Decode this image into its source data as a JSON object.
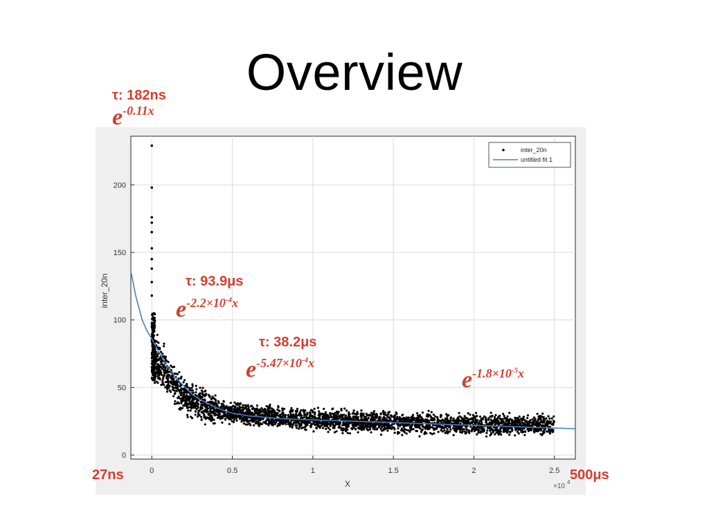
{
  "slide": {
    "title": "Overview"
  },
  "annotations": {
    "tau1": {
      "label": "τ: 182ns",
      "base": "e",
      "exponent": "-0.11x"
    },
    "tau2": {
      "label": "τ: 93.9μs",
      "base": "e",
      "exp_pre": "-2.2×10",
      "exp_sup": "-4",
      "exp_post": "x"
    },
    "tau3": {
      "label": "τ: 38.2μs",
      "base": "e",
      "exp_pre": "-5.47×10",
      "exp_sup": "-4",
      "exp_post": "x"
    },
    "tau4": {
      "base": "e",
      "exp_pre": "-1.8×10",
      "exp_sup": "-5",
      "exp_post": "x"
    },
    "range_start": "27ns",
    "range_end": "500μs"
  },
  "colors": {
    "annotation": "#d63d2e",
    "fit_line": "#4a7cc7",
    "points": "#000000",
    "grid": "#dcdcdc"
  },
  "chart_data": {
    "type": "scatter",
    "xlabel": "X",
    "ylabel": "inter_20n",
    "x_multiplier_label": "×10",
    "x_multiplier_exp": "4",
    "xlim": [
      -0.13,
      2.63
    ],
    "ylim": [
      -3,
      236
    ],
    "x_ticks": [
      "0",
      "0.5",
      "1",
      "1.5",
      "2",
      "2.5"
    ],
    "x_tick_values": [
      0,
      0.5,
      1,
      1.5,
      2,
      2.5
    ],
    "y_ticks": [
      "0",
      "50",
      "100",
      "150",
      "200"
    ],
    "y_tick_values": [
      0,
      50,
      100,
      150,
      200
    ],
    "grid": true,
    "legend_position": "top-right",
    "legend": [
      "inter_20n",
      "untitled fit 1"
    ],
    "series": [
      {
        "name": "inter_20n",
        "type": "scatter",
        "outliers": [
          [
            0,
            229
          ],
          [
            0,
            198
          ],
          [
            0,
            176
          ],
          [
            0,
            172
          ],
          [
            0,
            165
          ],
          [
            0,
            153
          ],
          [
            0,
            145
          ],
          [
            0,
            138
          ],
          [
            0,
            128
          ],
          [
            0,
            118
          ]
        ],
        "trend": [
          [
            0,
            78
          ],
          [
            0.05,
            66
          ],
          [
            0.1,
            58
          ],
          [
            0.15,
            50
          ],
          [
            0.2,
            44
          ],
          [
            0.3,
            37
          ],
          [
            0.4,
            33
          ],
          [
            0.5,
            31
          ],
          [
            0.75,
            28
          ],
          [
            1.0,
            26
          ],
          [
            1.5,
            24
          ],
          [
            2.0,
            23
          ],
          [
            2.5,
            22
          ]
        ]
      },
      {
        "name": "untitled fit 1",
        "type": "line",
        "points": [
          [
            -0.13,
            136
          ],
          [
            -0.1,
            118
          ],
          [
            -0.06,
            100
          ],
          [
            -0.03,
            92
          ],
          [
            0,
            86
          ],
          [
            0.05,
            75
          ],
          [
            0.1,
            65
          ],
          [
            0.15,
            57
          ],
          [
            0.2,
            51
          ],
          [
            0.25,
            45
          ],
          [
            0.3,
            41
          ],
          [
            0.4,
            35
          ],
          [
            0.5,
            31
          ],
          [
            0.6,
            29
          ],
          [
            0.8,
            27
          ],
          [
            1.0,
            26
          ],
          [
            1.5,
            24
          ],
          [
            2.0,
            22
          ],
          [
            2.5,
            20
          ],
          [
            2.63,
            19.5
          ]
        ]
      }
    ]
  }
}
